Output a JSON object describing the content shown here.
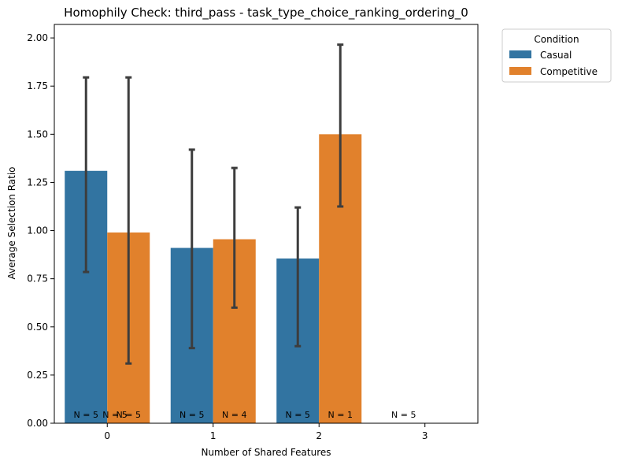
{
  "chart_data": {
    "type": "bar",
    "title": "Homophily Check: third_pass - task_type_choice_ranking_ordering_0",
    "xlabel": "Number of Shared Features",
    "ylabel": "Average Selection Ratio",
    "categories": [
      "0",
      "1",
      "2",
      "3"
    ],
    "ylim": [
      0,
      2.07
    ],
    "yticks": [
      "0.00",
      "0.25",
      "0.50",
      "0.75",
      "1.00",
      "1.25",
      "1.50",
      "1.75",
      "2.00"
    ],
    "grid": false,
    "legend": {
      "title": "Condition",
      "placement": "outside-top-right"
    },
    "series": [
      {
        "name": "Casual",
        "color": "#3274a1",
        "values": [
          1.31,
          0.91,
          0.855,
          null
        ],
        "err_low": [
          0.785,
          0.39,
          0.4,
          null
        ],
        "err_high": [
          1.795,
          1.42,
          1.12,
          null
        ],
        "n_labels": [
          "N = 5",
          "N = 5",
          "N = 5",
          "N = 5"
        ]
      },
      {
        "name": "Competitive",
        "color": "#e1812c",
        "values": [
          0.99,
          0.955,
          1.5,
          null
        ],
        "err_low": [
          0.31,
          0.6,
          1.125,
          null
        ],
        "err_high": [
          1.795,
          1.325,
          1.965,
          null
        ],
        "n_labels": [
          "N = 5",
          "N = 4",
          "N = 1",
          ""
        ]
      }
    ],
    "extra_labels": [
      "N = 5"
    ]
  }
}
